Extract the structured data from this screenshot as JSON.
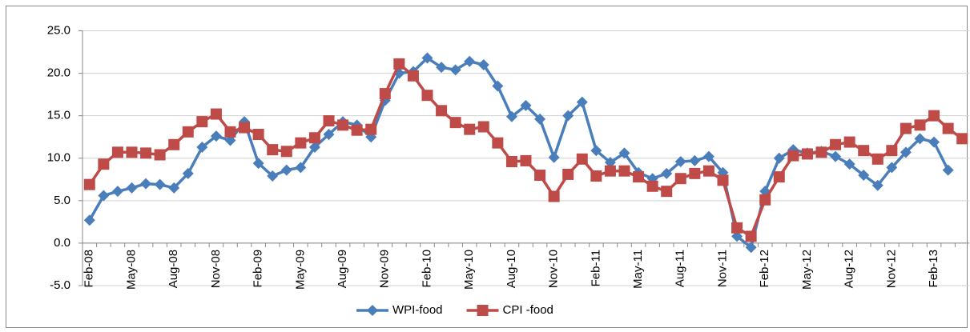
{
  "chart_data": {
    "type": "line",
    "categories": [
      "Feb-08",
      null,
      null,
      "May-08",
      null,
      null,
      "Aug-08",
      null,
      null,
      "Nov-08",
      null,
      null,
      "Feb-09",
      null,
      null,
      "May-09",
      null,
      null,
      "Aug-09",
      null,
      null,
      "Nov-09",
      null,
      null,
      "Feb-10",
      null,
      null,
      "May-10",
      null,
      null,
      "Aug-10",
      null,
      null,
      "Nov-10",
      null,
      null,
      "Feb-11",
      null,
      null,
      "May-11",
      null,
      null,
      "Aug-11",
      null,
      null,
      "Nov-11",
      null,
      null,
      "Feb-12",
      null,
      null,
      "May-12",
      null,
      null,
      "Aug-12",
      null,
      null,
      "Nov-12",
      null,
      null,
      "Feb-13",
      null,
      null
    ],
    "series": [
      {
        "name": "WPI-food",
        "color": "#4a7ebb",
        "marker": "diamond",
        "values": [
          2.7,
          5.6,
          6.1,
          6.5,
          7.0,
          6.9,
          6.5,
          8.2,
          11.3,
          12.6,
          12.1,
          14.3,
          9.4,
          7.9,
          8.6,
          8.9,
          11.3,
          12.8,
          14.3,
          13.9,
          12.5,
          16.8,
          20.0,
          20.2,
          21.8,
          20.7,
          20.4,
          21.4,
          21.0,
          18.5,
          14.9,
          16.2,
          14.6,
          10.1,
          15.0,
          16.6,
          10.9,
          9.5,
          10.6,
          8.3,
          7.6,
          8.2,
          9.6,
          9.7,
          10.2,
          8.3,
          0.8,
          -0.5,
          6.1,
          10.0,
          11.0,
          10.6,
          10.8,
          10.2,
          9.3,
          8.0,
          6.8,
          8.9,
          10.7,
          12.3,
          11.9,
          8.6,
          null
        ]
      },
      {
        "name": "CPI -food",
        "color": "#be4b48",
        "marker": "square",
        "values": [
          6.9,
          9.3,
          10.7,
          10.7,
          10.6,
          10.4,
          11.6,
          13.1,
          14.3,
          15.2,
          13.1,
          13.6,
          12.8,
          11.0,
          10.8,
          11.8,
          12.4,
          14.4,
          13.9,
          13.3,
          13.4,
          17.6,
          21.1,
          19.7,
          17.4,
          15.6,
          14.2,
          13.4,
          13.7,
          11.8,
          9.6,
          9.7,
          8.0,
          5.5,
          8.1,
          9.9,
          7.9,
          8.5,
          8.5,
          7.8,
          6.7,
          6.1,
          7.6,
          8.2,
          8.5,
          7.4,
          1.8,
          0.8,
          5.1,
          7.8,
          10.3,
          10.5,
          10.7,
          11.6,
          11.9,
          10.9,
          9.9,
          10.9,
          13.5,
          13.9,
          15.0,
          13.5,
          12.3
        ]
      }
    ],
    "ylim": [
      -5,
      25
    ],
    "yticks": [
      {
        "value": -5,
        "label": "-5.0"
      },
      {
        "value": 0,
        "label": "0.0"
      },
      {
        "value": 5,
        "label": "5.0"
      },
      {
        "value": 10,
        "label": "10.0"
      },
      {
        "value": 15,
        "label": "15.0"
      },
      {
        "value": 20,
        "label": "20.0"
      },
      {
        "value": 25,
        "label": "25.0"
      }
    ],
    "grid": true,
    "legend": "bottom"
  }
}
